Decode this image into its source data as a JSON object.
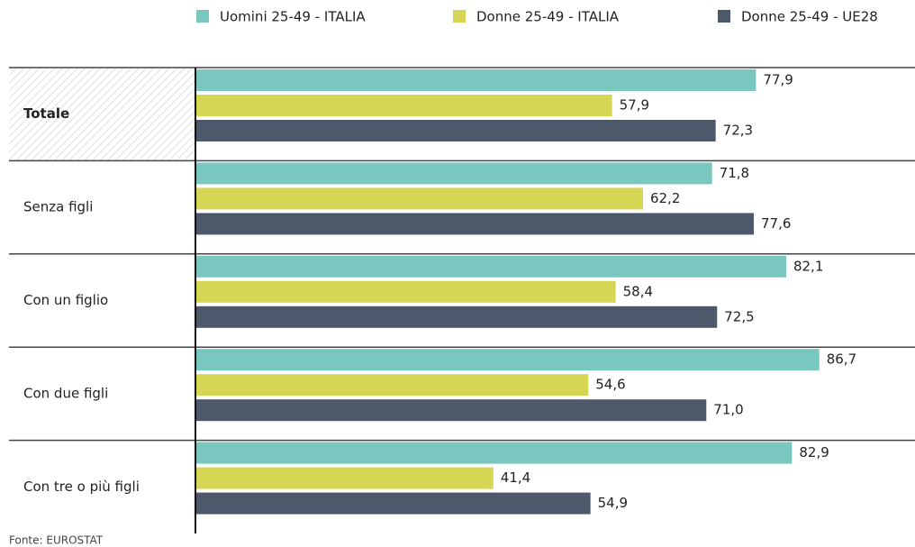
{
  "chart_data": {
    "type": "bar",
    "orientation": "horizontal",
    "categories": [
      "Totale",
      "Senza figli",
      "Con un figlio",
      "Con due figli",
      "Con tre o più figli"
    ],
    "series": [
      {
        "name": "Uomini 25-49 - ITALIA",
        "color": "#79c7bf",
        "values": [
          77.9,
          71.8,
          82.1,
          86.7,
          82.9
        ],
        "value_labels": [
          "77,9",
          "71,8",
          "82,1",
          "86,7",
          "82,9"
        ]
      },
      {
        "name": "Donne 25-49 - ITALIA",
        "color": "#d6d655",
        "values": [
          57.9,
          62.2,
          58.4,
          54.6,
          41.4
        ],
        "value_labels": [
          "57,9",
          "62,2",
          "58,4",
          "54,6",
          "41,4"
        ]
      },
      {
        "name": "Donne 25-49 - UE28",
        "color": "#4d596b",
        "values": [
          72.3,
          77.6,
          72.5,
          71.0,
          54.9
        ],
        "value_labels": [
          "72,3",
          "77,6",
          "72,5",
          "71,0",
          "54,9"
        ]
      }
    ],
    "xlim": [
      0,
      100
    ],
    "legend": "top",
    "source": "Fonte: EUROSTAT"
  }
}
